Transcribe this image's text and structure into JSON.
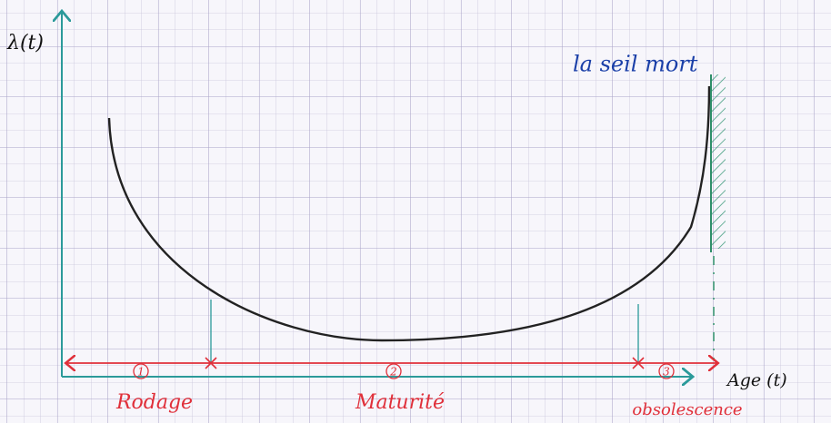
{
  "axis_labels": {
    "y": "λ(t)",
    "x": "Age (t)"
  },
  "annotation": "la seil mort",
  "phases": [
    {
      "number": "1",
      "label": "Rodage"
    },
    {
      "number": "2",
      "label": "Maturité"
    },
    {
      "number": "3",
      "label": "obsolescence"
    }
  ]
}
